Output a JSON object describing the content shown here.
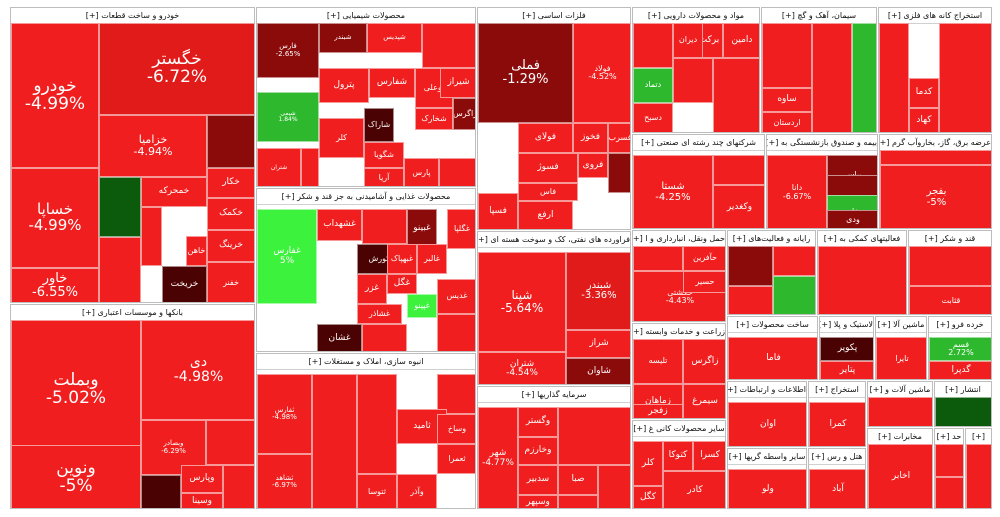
{
  "chart_data": {
    "type": "treemap",
    "colors": {
      "strong_negative": "#e11a1a",
      "negative": "#f01e1e",
      "dark_negative": "#8b0a0a",
      "very_dark": "#4a0202",
      "positive": "#2eb82e",
      "bright_positive": "#3df23d",
      "dark_positive": "#0c5a0c"
    },
    "sectors": [
      {
        "name": "خودرو و ساخت قطعات [+]",
        "tiles": [
          {
            "sym": "خودرو",
            "pct": "-4.99%"
          },
          {
            "sym": "خگستر",
            "pct": "-6.72%"
          },
          {
            "sym": "خساپا",
            "pct": "-4.99%"
          },
          {
            "sym": "خزامیا",
            "pct": "-4.94%"
          },
          {
            "sym": "خاور",
            "pct": "-6.55%"
          },
          {
            "sym": "خکار",
            "pct": ""
          },
          {
            "sym": "خمحرکه",
            "pct": ""
          },
          {
            "sym": "خکمک",
            "pct": ""
          },
          {
            "sym": "خرینگ",
            "pct": ""
          },
          {
            "sym": "خریخت",
            "pct": ""
          },
          {
            "sym": "خاهن",
            "pct": ""
          },
          {
            "sym": "خفنر",
            "pct": ""
          }
        ]
      },
      {
        "name": "محصولات شیمیایی [+]",
        "tiles": [
          {
            "sym": "فارس",
            "pct": "-2.65%"
          },
          {
            "sym": "شبندر",
            "pct": ""
          },
          {
            "sym": "شپدیس",
            "pct": ""
          },
          {
            "sym": "پترول",
            "pct": ""
          },
          {
            "sym": "شفارس",
            "pct": ""
          },
          {
            "sym": "بوعلی",
            "pct": ""
          },
          {
            "sym": "شیراز",
            "pct": ""
          },
          {
            "sym": "شخارک",
            "pct": ""
          },
          {
            "sym": "زاگرس",
            "pct": ""
          },
          {
            "sym": "کلر",
            "pct": ""
          },
          {
            "sym": "شاراک",
            "pct": ""
          },
          {
            "sym": "شگویا",
            "pct": ""
          },
          {
            "sym": "آریا",
            "pct": ""
          },
          {
            "sym": "شیمی",
            "pct": "1.84%"
          },
          {
            "sym": "شتران",
            "pct": ""
          },
          {
            "sym": "پارس",
            "pct": ""
          }
        ]
      },
      {
        "name": "فلزات اساسی [+]",
        "tiles": [
          {
            "sym": "فملی",
            "pct": "-1.29%"
          },
          {
            "sym": "فولاد",
            "pct": "-4.52%"
          },
          {
            "sym": "فخوز",
            "pct": ""
          },
          {
            "sym": "فسرب",
            "pct": ""
          },
          {
            "sym": "فولای",
            "pct": ""
          },
          {
            "sym": "فروی",
            "pct": ""
          },
          {
            "sym": "فسوژ",
            "pct": ""
          },
          {
            "sym": "فاس",
            "pct": ""
          },
          {
            "sym": "فسپا",
            "pct": ""
          },
          {
            "sym": "ارفع",
            "pct": ""
          }
        ]
      },
      {
        "name": "مواد و محصولات دارویی [+]",
        "tiles": [
          {
            "sym": "دامین",
            "pct": ""
          },
          {
            "sym": "برکت",
            "pct": ""
          },
          {
            "sym": "دیران",
            "pct": ""
          },
          {
            "sym": "دتماد",
            "pct": ""
          },
          {
            "sym": "دسبح",
            "pct": ""
          }
        ]
      },
      {
        "name": "سیمان، آهک و گچ [+]",
        "tiles": [
          {
            "sym": "ساوه",
            "pct": ""
          },
          {
            "sym": "اردستان",
            "pct": ""
          }
        ]
      },
      {
        "name": "استخراج کانه های فلزی [+]",
        "tiles": [
          {
            "sym": "کدما",
            "pct": ""
          },
          {
            "sym": "کهاد",
            "pct": ""
          }
        ]
      },
      {
        "name": "محصولات غذایی و آشامیدنی به جز قند و شکر [+]",
        "tiles": [
          {
            "sym": "غفارس",
            "pct": "5%"
          },
          {
            "sym": "غشهداب",
            "pct": ""
          },
          {
            "sym": "غبینو",
            "pct": ""
          },
          {
            "sym": "غگلپا",
            "pct": ""
          },
          {
            "sym": "عکورش",
            "pct": ""
          },
          {
            "sym": "غبهپاک",
            "pct": ""
          },
          {
            "sym": "غالبر",
            "pct": ""
          },
          {
            "sym": "غگل",
            "pct": ""
          },
          {
            "sym": "غزر",
            "pct": ""
          },
          {
            "sym": "غپینو",
            "pct": ""
          },
          {
            "sym": "غشان",
            "pct": ""
          },
          {
            "sym": "غدیس",
            "pct": ""
          },
          {
            "sym": "غشاذر",
            "pct": ""
          }
        ]
      },
      {
        "name": "انبوه سازی، املاک و مستغلات [+]",
        "tiles": [
          {
            "sym": "ثفارس",
            "pct": "-4.98%"
          },
          {
            "sym": "ثشاهد",
            "pct": "-6.97%"
          },
          {
            "sym": "ثامید",
            "pct": ""
          },
          {
            "sym": "ثتوسا",
            "pct": ""
          },
          {
            "sym": "وآذر",
            "pct": ""
          },
          {
            "sym": "ثعمرا",
            "pct": ""
          },
          {
            "sym": "وساخ",
            "pct": ""
          }
        ]
      },
      {
        "name": "بانکها و موسسات اعتباری [+]",
        "tiles": [
          {
            "sym": "وبملت",
            "pct": "-5.02%"
          },
          {
            "sym": "دی",
            "pct": "-4.98%"
          },
          {
            "sym": "ونوین",
            "pct": "-5%"
          },
          {
            "sym": "وبصادر",
            "pct": "-6.29%"
          },
          {
            "sym": "وپارس",
            "pct": ""
          },
          {
            "sym": "وسینا",
            "pct": ""
          }
        ]
      },
      {
        "name": "فراورده های نفتی، کک و سوخت هسته ای [+]",
        "tiles": [
          {
            "sym": "شپنا",
            "pct": "-5.64%"
          },
          {
            "sym": "شبندر",
            "pct": "-3.36%"
          },
          {
            "sym": "شتران",
            "pct": "-4.54%"
          },
          {
            "sym": "شراز",
            "pct": ""
          },
          {
            "sym": "شاوان",
            "pct": ""
          }
        ]
      },
      {
        "name": "سرمایه گذاریها [+]",
        "tiles": [
          {
            "sym": "شهر",
            "pct": "-4.77%"
          },
          {
            "sym": "وگستر",
            "pct": ""
          },
          {
            "sym": "وخارزم",
            "pct": ""
          },
          {
            "sym": "سدبیر",
            "pct": ""
          },
          {
            "sym": "وسپهر",
            "pct": ""
          },
          {
            "sym": "صبا",
            "pct": ""
          }
        ]
      },
      {
        "name": "شرکتهای چند رشته ای صنعتی [+]",
        "tiles": [
          {
            "sym": "شستا",
            "pct": "-4.25%"
          },
          {
            "sym": "وکغدیر",
            "pct": ""
          }
        ]
      },
      {
        "name": "بیمه و صندوق بازنشستگی به [+]",
        "tiles": [
          {
            "sym": "دانا",
            "pct": "-6.67%"
          },
          {
            "sym": "بپاس",
            "pct": ""
          },
          {
            "sym": "نوین",
            "pct": ""
          },
          {
            "sym": "بخاور",
            "pct": ""
          },
          {
            "sym": "ودی",
            "pct": ""
          }
        ]
      },
      {
        "name": "عرضه برق، گاز، بخاروآب گرم [+]",
        "tiles": [
          {
            "sym": "بفجر",
            "pct": "-5%"
          }
        ]
      },
      {
        "name": "حمل ونقل، انبارداری و ا [+]",
        "tiles": [
          {
            "sym": "حکشتی",
            "pct": "-4.43%"
          },
          {
            "sym": "حآفرین",
            "pct": ""
          },
          {
            "sym": "حسیر",
            "pct": ""
          }
        ]
      },
      {
        "name": "زراعت و خدمات وابسته [+]",
        "tiles": [
          {
            "sym": "تلیسه",
            "pct": ""
          },
          {
            "sym": "زاگرس",
            "pct": ""
          },
          {
            "sym": "زماهان",
            "pct": ""
          },
          {
            "sym": "سیمرغ",
            "pct": ""
          },
          {
            "sym": "زفجر",
            "pct": ""
          }
        ]
      },
      {
        "name": "سایر محصولات کانی غ [+]",
        "tiles": [
          {
            "sym": "کسرا",
            "pct": ""
          },
          {
            "sym": "کتوکا",
            "pct": ""
          },
          {
            "sym": "کلر",
            "pct": ""
          },
          {
            "sym": "کگل",
            "pct": ""
          },
          {
            "sym": "کادر",
            "pct": ""
          }
        ]
      },
      {
        "name": "رایانه و فعالیت‌های [+]",
        "tiles": []
      },
      {
        "name": "فعالیتهای کمکی به [+]",
        "tiles": []
      },
      {
        "name": "قند و شکر [+]",
        "tiles": [
          {
            "sym": "قثابت",
            "pct": ""
          }
        ]
      },
      {
        "name": "ساخت محصولات [+]",
        "tiles": [
          {
            "sym": "فاما",
            "pct": ""
          }
        ]
      },
      {
        "name": "لاستیک و پلا [+]",
        "tiles": [
          {
            "sym": "پکویر",
            "pct": ""
          },
          {
            "sym": "پتایر",
            "pct": ""
          }
        ]
      },
      {
        "name": "ماشین آلا [+]",
        "tiles": [
          {
            "sym": "تایرا",
            "pct": ""
          }
        ]
      },
      {
        "name": "خرده فرو [+]",
        "tiles": [
          {
            "sym": "فسم",
            "pct": "2.72%"
          },
          {
            "sym": "گدپرا",
            "pct": ""
          }
        ]
      },
      {
        "name": "اطلاعات و ارتباطات [+]",
        "tiles": [
          {
            "sym": "اوان",
            "pct": ""
          }
        ]
      },
      {
        "name": "استخراج [+]",
        "tiles": [
          {
            "sym": "کمرا",
            "pct": ""
          }
        ]
      },
      {
        "name": "ماشین آلات و [+]",
        "tiles": []
      },
      {
        "name": "انتشار [+]",
        "tiles": []
      },
      {
        "name": "سایر واسطه گریها [+]",
        "tiles": [
          {
            "sym": "ولو",
            "pct": ""
          }
        ]
      },
      {
        "name": "هتل و رس [+]",
        "tiles": [
          {
            "sym": "آباد",
            "pct": ""
          }
        ]
      },
      {
        "name": "مخابرات [+]",
        "tiles": [
          {
            "sym": "اخابر",
            "pct": ""
          }
        ]
      },
      {
        "name": "حد [+]",
        "tiles": []
      },
      {
        "name": "[+]",
        "tiles": []
      }
    ]
  }
}
